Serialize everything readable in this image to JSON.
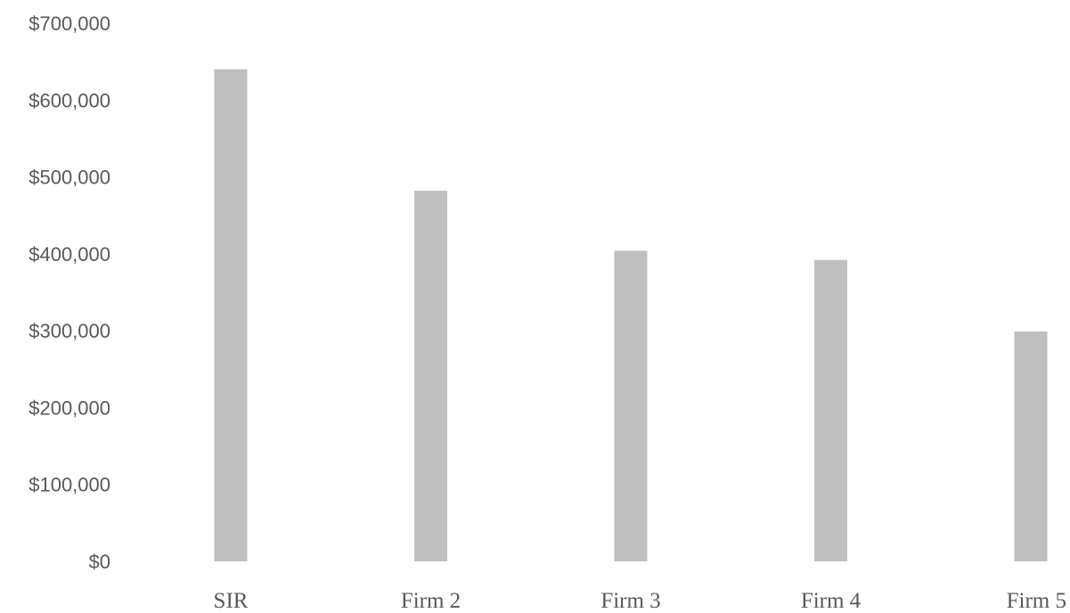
{
  "chart_data": {
    "type": "bar",
    "title": "",
    "xlabel": "",
    "ylabel": "",
    "categories": [
      "SIR",
      "Firm 2",
      "Firm 3",
      "Firm 4",
      "Firm 5"
    ],
    "values": [
      640000,
      482000,
      404000,
      392000,
      299000
    ],
    "ylim": [
      0,
      700000
    ],
    "yticks": [
      0,
      100000,
      200000,
      300000,
      400000,
      500000,
      600000,
      700000
    ],
    "ytick_labels": [
      "$0",
      "$100,000",
      "$200,000",
      "$300,000",
      "$400,000",
      "$500,000",
      "$600,000",
      "$700,000"
    ],
    "grid": false,
    "legend": "none",
    "bar_color": "#bfbfbf",
    "text_color": "#595959"
  }
}
